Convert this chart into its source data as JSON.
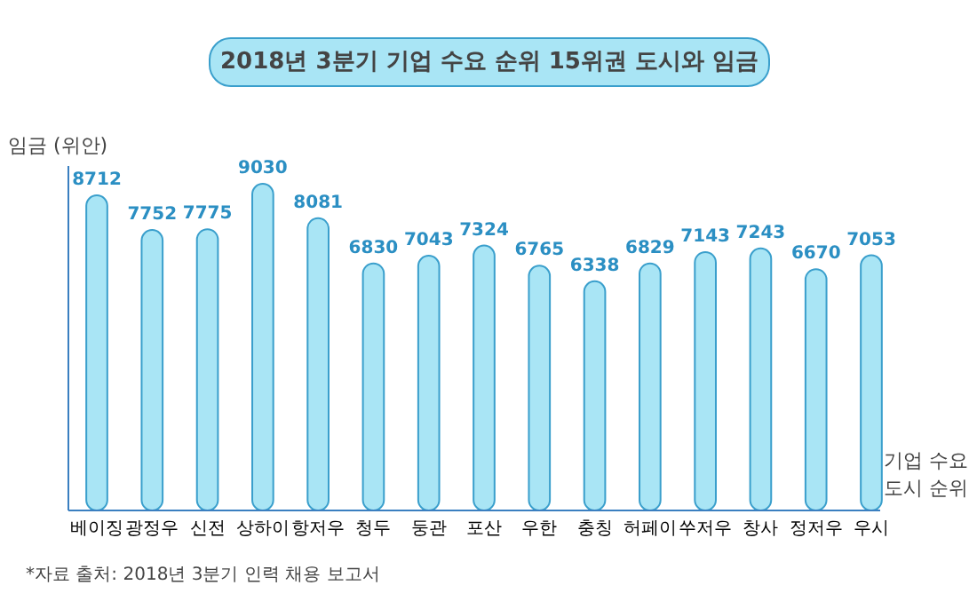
{
  "chart_data": {
    "type": "bar",
    "title": "2018년 3분기 기업 수요 순위 15위권 도시와 임금",
    "xlabel": "기업 수요\n도시 순위",
    "ylabel": "임금 (위안)",
    "categories": [
      "베이징",
      "광정우",
      "신전",
      "상하이",
      "항저우",
      "청두",
      "둥관",
      "포산",
      "우한",
      "충칭",
      "허페이",
      "쑤저우",
      "창사",
      "정저우",
      "우시"
    ],
    "values": [
      8712,
      7752,
      7775,
      9030,
      8081,
      6830,
      7043,
      7324,
      6765,
      6338,
      6829,
      7143,
      7243,
      6670,
      7053
    ],
    "color": "#a9e5f5",
    "data_labels": true,
    "tick_labels": "x",
    "grid": false,
    "annotations": [
      "*자료 출처: 2018년 3분기 인력 채용 보고서"
    ]
  }
}
